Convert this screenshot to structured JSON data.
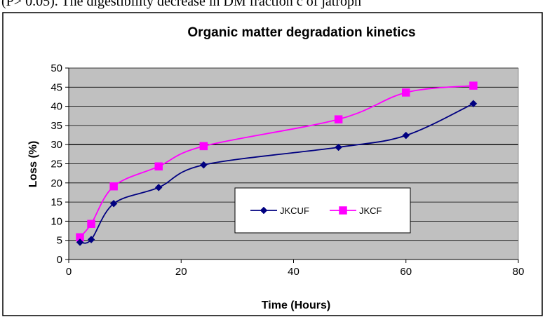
{
  "caption_fragment": "(P> 0.05). The digestibility  decrease in DM  fraction c  of  jatroph",
  "chart_data": {
    "type": "line",
    "title": "Organic matter degradation kinetics",
    "xlabel": "Time (Hours)",
    "ylabel": "Loss (%)",
    "xlim": [
      0,
      80
    ],
    "ylim": [
      0,
      50
    ],
    "xticks": [
      0,
      20,
      40,
      60,
      80
    ],
    "yticks": [
      0,
      5,
      10,
      15,
      20,
      25,
      30,
      35,
      40,
      45,
      50
    ],
    "grid": true,
    "legend_position": "inside-lower-center",
    "x": [
      2,
      4,
      8,
      16,
      24,
      48,
      60,
      72
    ],
    "series": [
      {
        "name": "JKCUF",
        "values": [
          4.5,
          5.2,
          14.6,
          18.8,
          24.7,
          29.3,
          32.4,
          40.7
        ],
        "color": "#000080",
        "marker": "diamond"
      },
      {
        "name": "JKCF",
        "values": [
          5.8,
          9.3,
          19.1,
          24.3,
          29.6,
          36.6,
          43.6,
          45.4
        ],
        "color": "#ff00ff",
        "marker": "square"
      }
    ],
    "plot_background": "#c0c0c0",
    "highlight_gridline": 30
  }
}
